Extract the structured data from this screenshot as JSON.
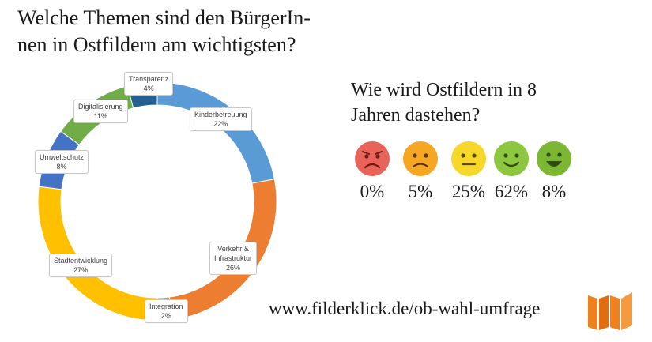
{
  "header": {
    "title_line1": "Welche Themen sind den BürgerIn-",
    "title_line2": "nen in Ostfildern am wichtigsten?"
  },
  "chart_data": {
    "type": "pie",
    "style": "donut",
    "start_angle_deg": 0,
    "slices": [
      {
        "name": "Kinderbetreuung",
        "value": 22,
        "label": "22%",
        "color": "#5b9bd5"
      },
      {
        "name": "Verkehr & Infrastruktur",
        "name_line1": "Verkehr &",
        "name_line2": "Infrastruktur",
        "value": 26,
        "label": "26%",
        "color": "#ed7d31"
      },
      {
        "name": "Integration",
        "value": 2,
        "label": "2%",
        "color": "#a5a5a5"
      },
      {
        "name": "Stadtentwicklung",
        "value": 27,
        "label": "27%",
        "color": "#ffc000"
      },
      {
        "name": "Umweltschutz",
        "value": 8,
        "label": "8%",
        "color": "#4472c4"
      },
      {
        "name": "Digitalisierung",
        "value": 11,
        "label": "11%",
        "color": "#70ad47"
      },
      {
        "name": "Transparenz",
        "value": 4,
        "label": "4%",
        "color": "#255e91"
      }
    ]
  },
  "survey": {
    "question_line1": "Wie wird Ostfildern in 8",
    "question_line2": "Jahren dastehen?",
    "ratings": [
      {
        "mood": "angry",
        "icon": "angry-face-icon",
        "color": "#e8645a",
        "percent": "0%"
      },
      {
        "mood": "sad",
        "icon": "sad-face-icon",
        "color": "#f5a623",
        "percent": "5%"
      },
      {
        "mood": "neutral",
        "icon": "neutral-face-icon",
        "color": "#f7d82a",
        "percent": "25%"
      },
      {
        "mood": "happy",
        "icon": "happy-face-icon",
        "color": "#8dc63f",
        "percent": "62%"
      },
      {
        "mood": "very-happy",
        "icon": "grinning-face-icon",
        "color": "#7cb733",
        "percent": "8%"
      }
    ]
  },
  "footer": {
    "url": "www.filderklick.de/ob-wahl-umfrage",
    "logo_icon": "filderklick-logo-icon",
    "logo_color": "#f07f1e"
  }
}
